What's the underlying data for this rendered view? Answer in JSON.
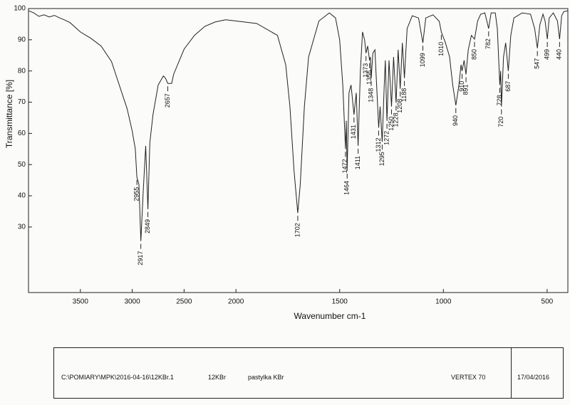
{
  "chart_data": {
    "type": "line",
    "xlabel": "Wavenumber cm-1",
    "ylabel": "Transmittance [%]",
    "xlim": [
      4000,
      400
    ],
    "x_break": 2000,
    "x_break_factor": 0.5,
    "ylim": [
      9,
      100
    ],
    "xticks": [
      3500,
      3000,
      2500,
      2000,
      1500,
      1000,
      500
    ],
    "yticks": [
      30,
      40,
      50,
      60,
      70,
      80,
      90,
      100
    ],
    "grid": false,
    "series": [
      {
        "color": "#222222",
        "x": [
          4000,
          3950,
          3900,
          3850,
          3800,
          3750,
          3700,
          3650,
          3600,
          3500,
          3400,
          3300,
          3200,
          3100,
          3050,
          3000,
          2970,
          2955,
          2935,
          2917,
          2895,
          2870,
          2849,
          2830,
          2800,
          2750,
          2700,
          2680,
          2657,
          2620,
          2600,
          2500,
          2400,
          2300,
          2200,
          2100,
          2000,
          1900,
          1800,
          1760,
          1740,
          1720,
          1702,
          1690,
          1670,
          1650,
          1600,
          1550,
          1520,
          1500,
          1485,
          1472,
          1468,
          1464,
          1455,
          1445,
          1431,
          1420,
          1411,
          1400,
          1390,
          1380,
          1373,
          1365,
          1356,
          1352,
          1348,
          1340,
          1330,
          1312,
          1305,
          1295,
          1285,
          1280,
          1272,
          1262,
          1250,
          1240,
          1228,
          1218,
          1208,
          1198,
          1188,
          1175,
          1150,
          1120,
          1099,
          1085,
          1050,
          1020,
          1010,
          990,
          970,
          955,
          940,
          925,
          915,
          910,
          900,
          891,
          880,
          865,
          850,
          835,
          820,
          800,
          782,
          770,
          750,
          740,
          728,
          724,
          720,
          710,
          700,
          687,
          675,
          660,
          620,
          580,
          560,
          547,
          535,
          520,
          510,
          499,
          490,
          470,
          450,
          440,
          430,
          420,
          400
        ],
        "values": [
          99.3,
          98.6,
          97.5,
          98,
          97.3,
          97.8,
          97,
          96.3,
          95.5,
          92.5,
          90.5,
          88,
          83,
          73,
          68,
          60.7,
          55,
          46,
          43.6,
          25.5,
          41,
          56,
          35.7,
          57,
          66,
          75.5,
          78.4,
          77.7,
          76,
          76,
          79,
          87,
          91.4,
          94.3,
          95.7,
          96.4,
          96,
          95.2,
          91.4,
          82,
          68.6,
          48,
          34.5,
          43.6,
          68.6,
          84.5,
          96,
          98.6,
          97,
          90,
          75.5,
          55,
          64,
          48,
          73,
          75.5,
          66,
          73,
          56,
          80,
          92.5,
          90,
          85.7,
          88,
          83.4,
          84.5,
          77.7,
          85.7,
          86.8,
          61.8,
          68.6,
          57.3,
          75.5,
          83.4,
          64,
          83.4,
          68.6,
          84.5,
          69.8,
          86.8,
          74.3,
          89,
          77.7,
          93.6,
          97.7,
          97,
          89,
          97,
          98,
          95.9,
          92.5,
          89,
          84.5,
          75.5,
          69,
          75.5,
          82,
          80,
          83.4,
          78.9,
          86.8,
          91.4,
          90.2,
          96,
          98.2,
          98.6,
          93.6,
          98.6,
          98.6,
          93.6,
          75.5,
          80,
          68.6,
          84.5,
          89,
          80,
          91.4,
          97,
          98.6,
          98.2,
          93.6,
          87.3,
          94.8,
          98.2,
          96,
          90.2,
          97,
          98.6,
          96,
          90.2,
          97.7,
          99,
          99.3
        ]
      }
    ],
    "peaks": [
      2955,
      2917,
      2849,
      2657,
      1702,
      1472,
      1464,
      1431,
      1411,
      1373,
      1356,
      1348,
      1312,
      1295,
      1272,
      1250,
      1228,
      1208,
      1188,
      1099,
      1010,
      940,
      910,
      891,
      850,
      782,
      728,
      720,
      687,
      547,
      499,
      440
    ]
  },
  "footer": {
    "file": "C:\\POMIARY\\MPK\\2016-04-16\\12KBr.1",
    "sample": "12KBr",
    "method": "pastylka KBr",
    "instrument": "VERTEX 70",
    "date": "17/04/2016"
  }
}
